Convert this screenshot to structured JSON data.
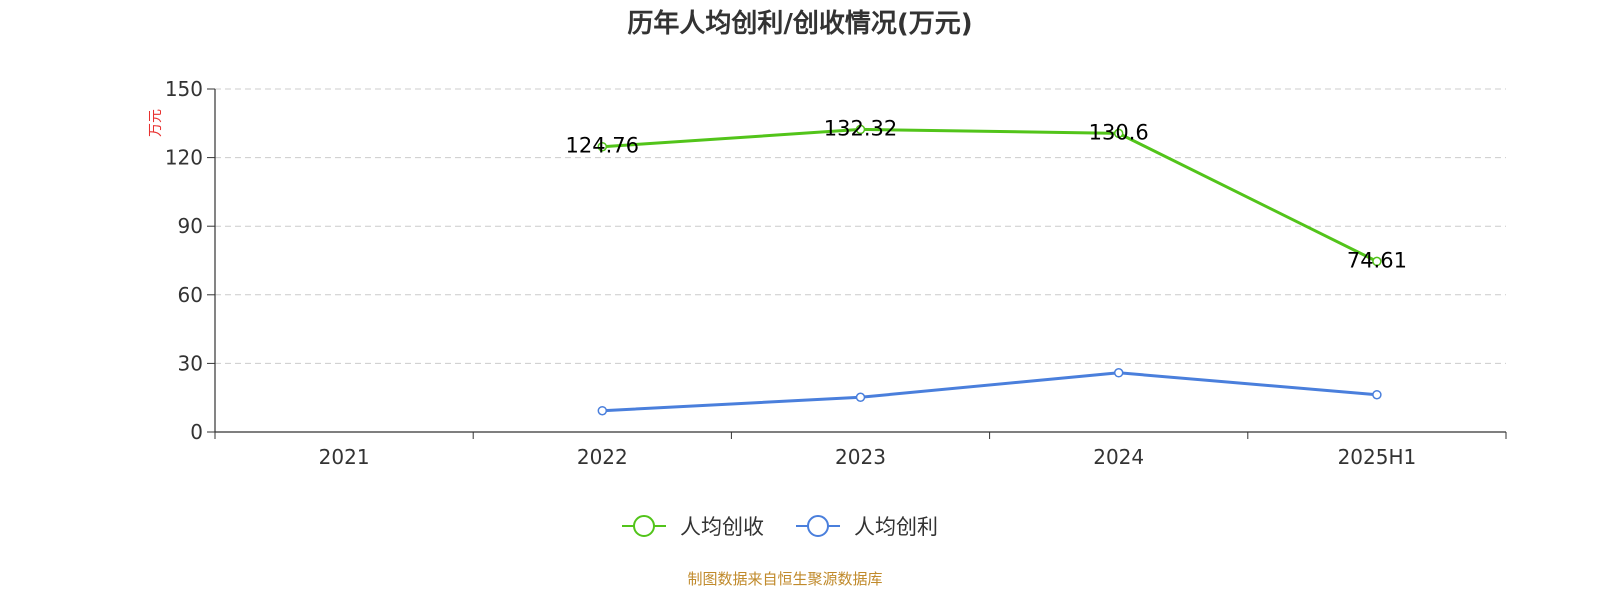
{
  "chart_data": {
    "type": "line",
    "title": "历年人均创利/创收情况(万元)",
    "ylabel": "万元",
    "xlabel": "",
    "categories": [
      "2021",
      "2022",
      "2023",
      "2024",
      "2025H1"
    ],
    "ylim": [
      0,
      150
    ],
    "yticks": [
      0,
      30,
      60,
      90,
      120,
      150
    ],
    "grid": true,
    "legend_position": "bottom-center",
    "series": [
      {
        "name": "人均创收",
        "color": "#52c41a",
        "values": [
          null,
          124.76,
          132.32,
          130.6,
          74.61
        ],
        "labels": [
          null,
          "124.76",
          "132.32",
          "130.6",
          "74.61"
        ]
      },
      {
        "name": "人均创利",
        "color": "#4a7fdc",
        "values": [
          null,
          9.3,
          15.2,
          25.9,
          16.3
        ],
        "labels": null
      }
    ]
  },
  "source": "制图数据来自恒生聚源数据库"
}
